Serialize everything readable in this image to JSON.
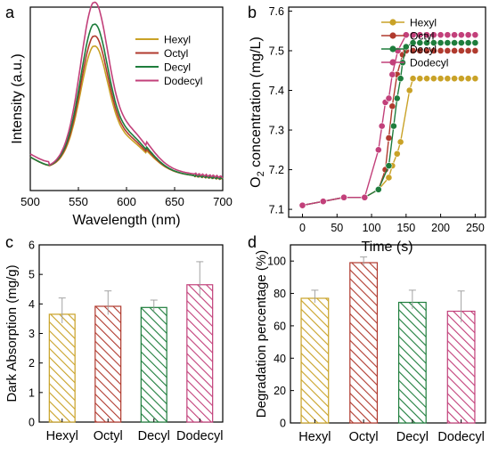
{
  "colors": {
    "hexyl": "#C9A227",
    "octyl": "#B03A2E",
    "decyl": "#1E7D3C",
    "dodecyl": "#C2407A"
  },
  "chart_data": [
    {
      "panel": "a",
      "type": "line",
      "xlabel": "Wavelength (nm)",
      "ylabel": "Intensity (a.u.)",
      "xlim": [
        500,
        700
      ],
      "xticks": [
        "500",
        "550",
        "600",
        "650",
        "700"
      ],
      "y_ticks_shown": false,
      "legend": "top-right",
      "series": [
        {
          "name": "Hexyl",
          "color_key": "hexyl",
          "peak": 0.74,
          "base_left": 0.17,
          "tail": 0.08
        },
        {
          "name": "Octyl",
          "color_key": "octyl",
          "peak": 0.8,
          "base_left": 0.17,
          "tail": 0.08
        },
        {
          "name": "Decyl",
          "color_key": "decyl",
          "peak": 0.87,
          "base_left": 0.17,
          "tail": 0.08
        },
        {
          "name": "Dodecyl",
          "color_key": "dodecyl",
          "peak": 1.0,
          "base_left": 0.19,
          "tail": 0.09
        }
      ]
    },
    {
      "panel": "b",
      "type": "line",
      "xlabel": "Time (s)",
      "ylabel": "O2 concentration (mg/L)",
      "ylabel_parts": [
        "O",
        "2",
        " concentration (mg/L)"
      ],
      "xlim": [
        -20,
        265
      ],
      "ylim": [
        7.08,
        7.61
      ],
      "xticks": [
        0,
        50,
        100,
        150,
        200,
        250
      ],
      "yticks": [
        7.1,
        7.2,
        7.3,
        7.4,
        7.5,
        7.6
      ],
      "legend": "top-right",
      "series": [
        {
          "name": "Hexyl",
          "color_key": "hexyl",
          "x": [
            0,
            30,
            60,
            90,
            110,
            125,
            130,
            137,
            142,
            155,
            160,
            170,
            180,
            190,
            200,
            210,
            220,
            230,
            240,
            250
          ],
          "y": [
            7.11,
            7.12,
            7.13,
            7.13,
            7.15,
            7.18,
            7.21,
            7.24,
            7.27,
            7.4,
            7.43,
            7.43,
            7.43,
            7.43,
            7.43,
            7.43,
            7.43,
            7.43,
            7.43,
            7.43
          ]
        },
        {
          "name": "Octyl",
          "color_key": "octyl",
          "x": [
            0,
            30,
            60,
            90,
            110,
            120,
            125,
            130,
            137,
            145,
            150,
            160,
            170,
            180,
            190,
            200,
            210,
            220,
            230,
            240,
            250
          ],
          "y": [
            7.11,
            7.12,
            7.13,
            7.13,
            7.15,
            7.2,
            7.28,
            7.36,
            7.44,
            7.49,
            7.5,
            7.5,
            7.5,
            7.5,
            7.5,
            7.5,
            7.5,
            7.5,
            7.5,
            7.5,
            7.5
          ]
        },
        {
          "name": "Decyl",
          "color_key": "decyl",
          "x": [
            0,
            30,
            60,
            90,
            110,
            125,
            132,
            137,
            142,
            145,
            150,
            160,
            170,
            180,
            190,
            200,
            210,
            220,
            230,
            240,
            250
          ],
          "y": [
            7.11,
            7.12,
            7.13,
            7.13,
            7.15,
            7.21,
            7.31,
            7.38,
            7.43,
            7.47,
            7.51,
            7.52,
            7.52,
            7.52,
            7.52,
            7.52,
            7.52,
            7.52,
            7.52,
            7.52,
            7.52
          ]
        },
        {
          "name": "Dodecyl",
          "color_key": "dodecyl",
          "x": [
            0,
            30,
            60,
            90,
            110,
            115,
            120,
            125,
            130,
            138,
            150,
            160,
            170,
            180,
            190,
            200,
            210,
            220,
            230,
            240,
            250
          ],
          "y": [
            7.11,
            7.12,
            7.13,
            7.13,
            7.25,
            7.31,
            7.37,
            7.38,
            7.44,
            7.5,
            7.54,
            7.54,
            7.54,
            7.54,
            7.54,
            7.54,
            7.54,
            7.54,
            7.54,
            7.54,
            7.54
          ]
        }
      ]
    },
    {
      "panel": "c",
      "type": "bar",
      "xlabel": "",
      "ylabel": "Dark Absorption (mg/g)",
      "ylim": [
        0,
        6
      ],
      "yticks": [
        0,
        1,
        2,
        3,
        4,
        5,
        6
      ],
      "categories": [
        "Hexyl",
        "Octyl",
        "Decyl",
        "Dodecyl"
      ],
      "color_keys": [
        "hexyl",
        "octyl",
        "decyl",
        "dodecyl"
      ],
      "values": [
        3.65,
        3.92,
        3.88,
        4.65
      ],
      "errors": [
        0.55,
        0.52,
        0.25,
        0.78
      ]
    },
    {
      "panel": "d",
      "type": "bar",
      "xlabel": "",
      "ylabel": "Degradation percentage (%)",
      "ylim": [
        0,
        110
      ],
      "yticks": [
        0,
        20,
        40,
        60,
        80,
        100
      ],
      "categories": [
        "Hexyl",
        "Octyl",
        "Decyl",
        "Dodecyl"
      ],
      "color_keys": [
        "hexyl",
        "octyl",
        "decyl",
        "dodecyl"
      ],
      "values": [
        77,
        99,
        74.5,
        69
      ],
      "errors": [
        5,
        3.5,
        7.5,
        12.5
      ]
    }
  ],
  "panel_labels": [
    "a",
    "b",
    "c",
    "d"
  ]
}
